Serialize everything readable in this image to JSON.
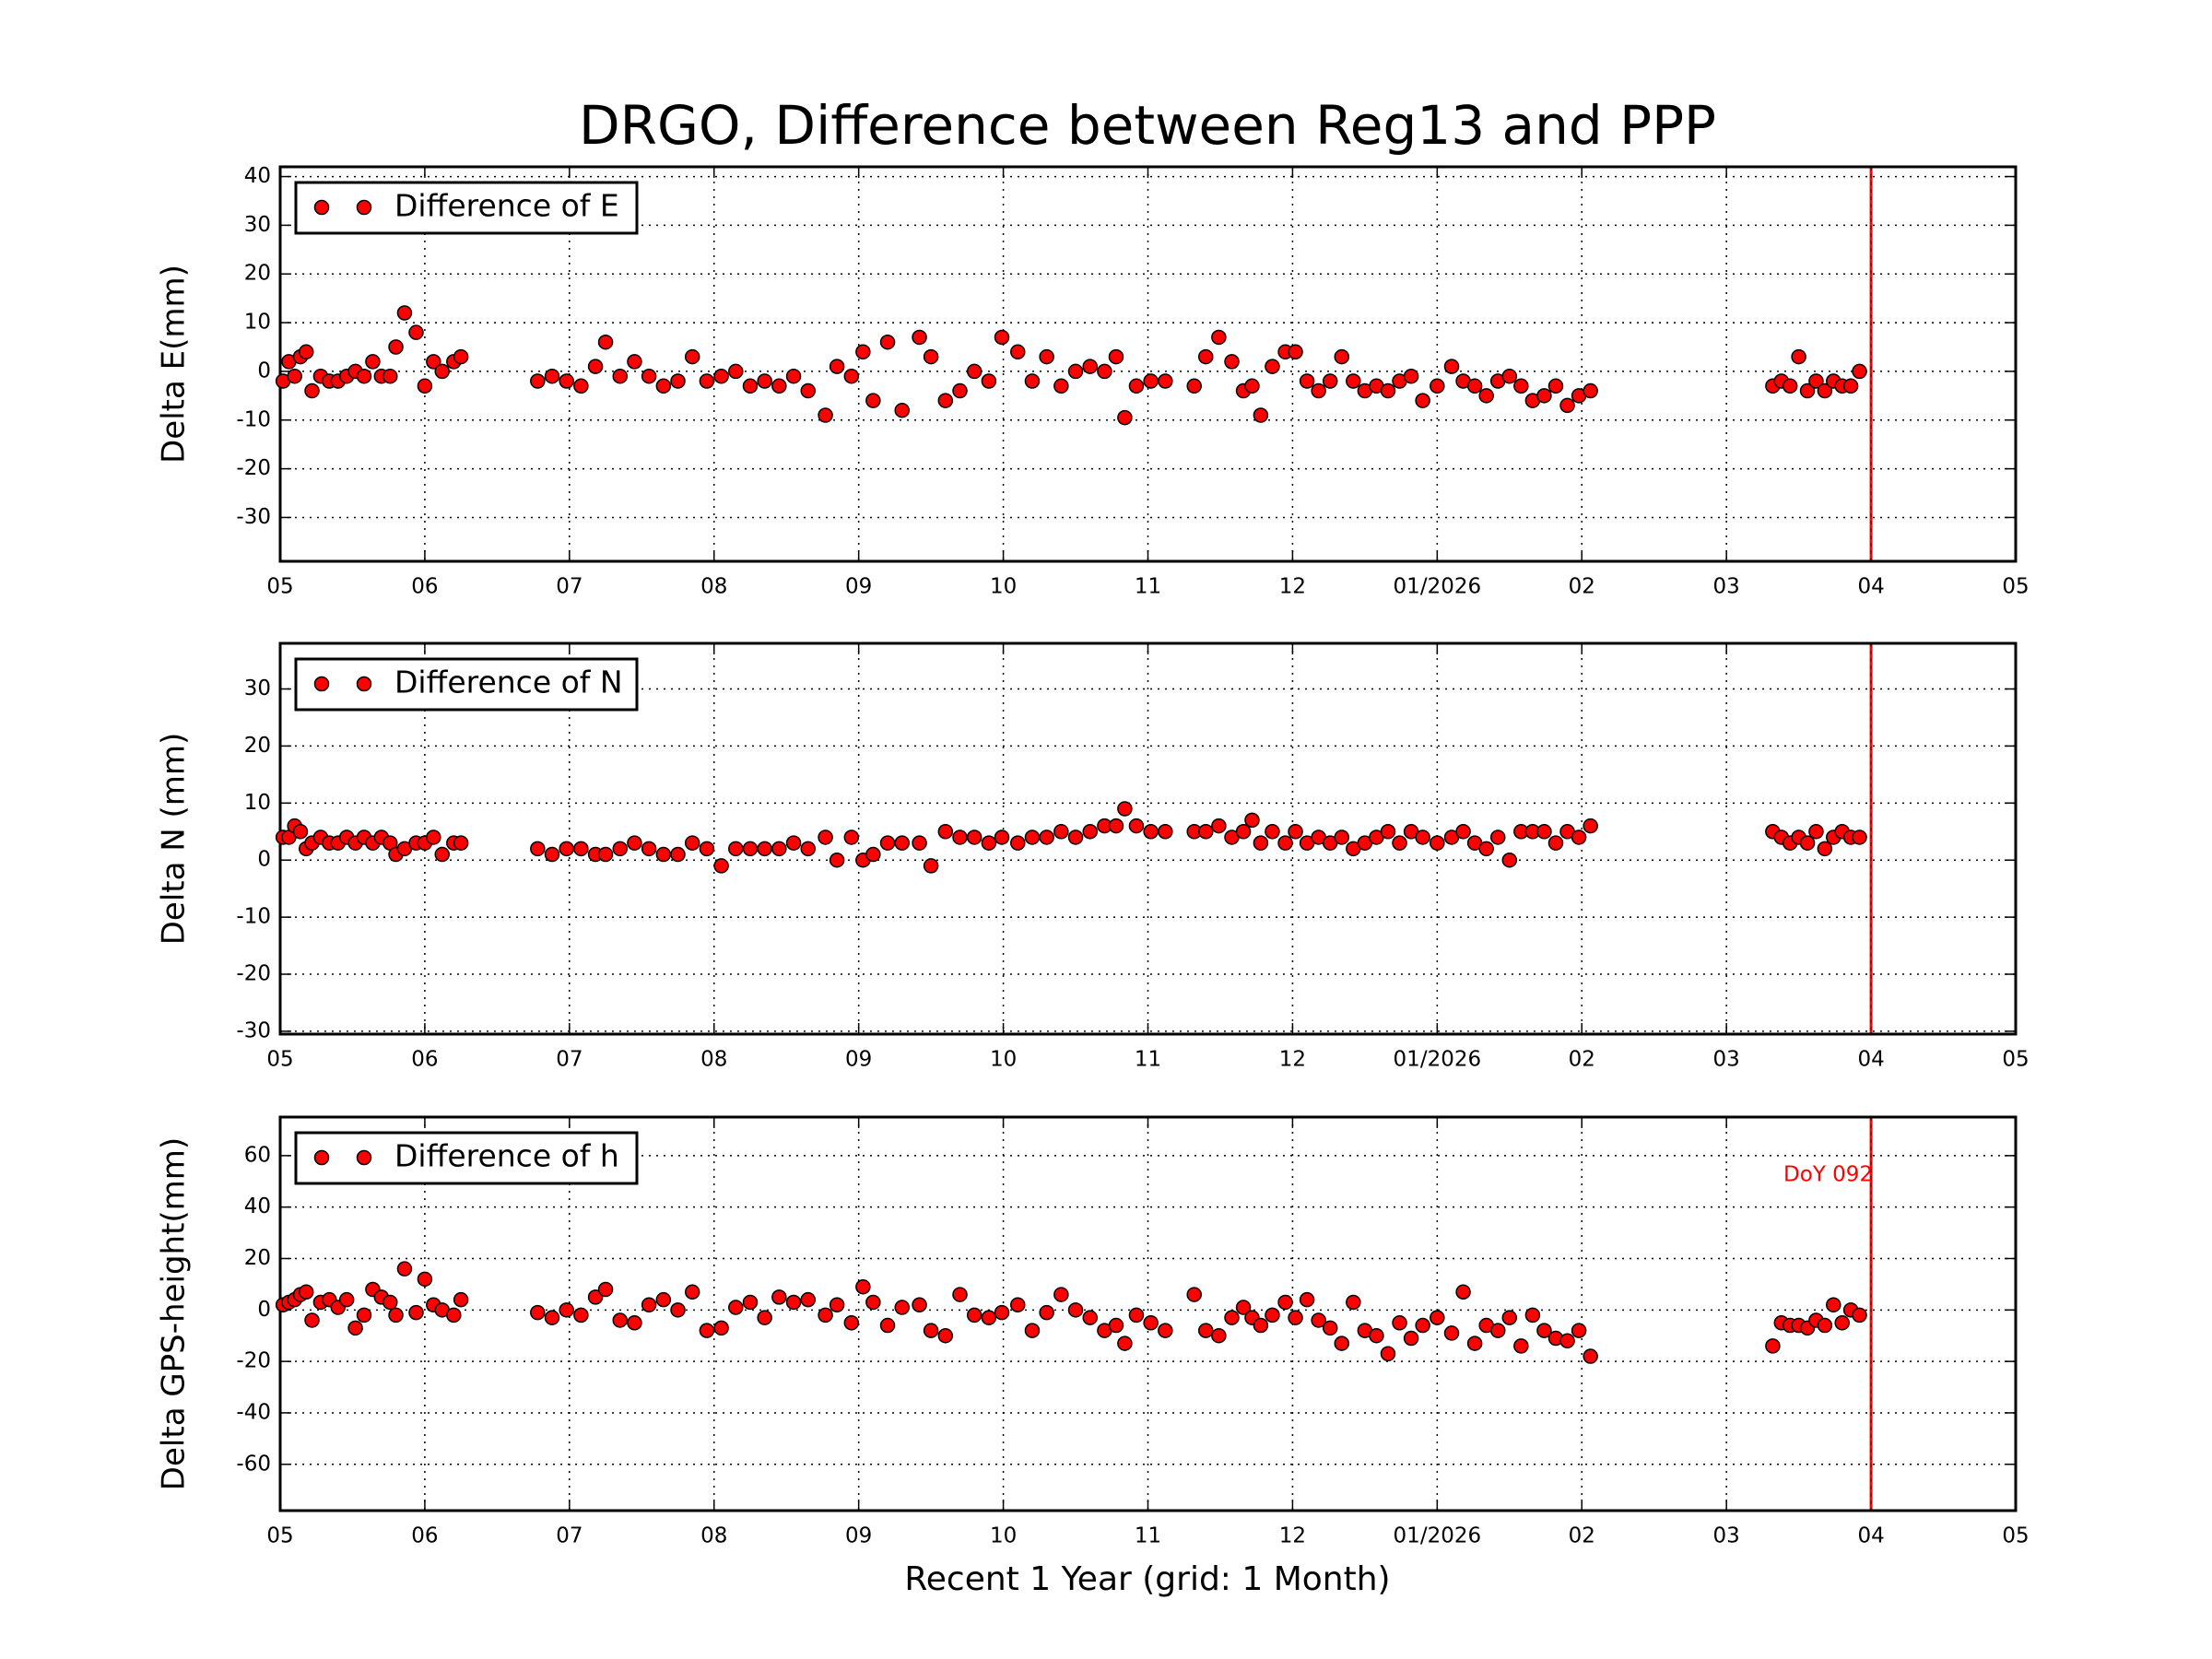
{
  "title": "DRGO, Difference between Reg13 and PPP",
  "xlabel": "Recent 1 Year (grid: 1 Month)",
  "chart_data": [
    {
      "type": "scatter",
      "ylabel": "Delta E(mm)",
      "legend": "upper left",
      "grid": true,
      "xlim": [
        0,
        12
      ],
      "ylim": [
        -39,
        42
      ],
      "yticks": [
        -30,
        -20,
        -10,
        0,
        10,
        20,
        30,
        40
      ],
      "xticks": [
        {
          "value": 0,
          "label": "05"
        },
        {
          "value": 1,
          "label": "06"
        },
        {
          "value": 2,
          "label": "07"
        },
        {
          "value": 3,
          "label": "08"
        },
        {
          "value": 4,
          "label": "09"
        },
        {
          "value": 5,
          "label": "10"
        },
        {
          "value": 6,
          "label": "11"
        },
        {
          "value": 7,
          "label": "12"
        },
        {
          "value": 8,
          "label": "01/2026"
        },
        {
          "value": 9,
          "label": "02"
        },
        {
          "value": 10,
          "label": "03"
        },
        {
          "value": 11,
          "label": "04"
        },
        {
          "value": 12,
          "label": "05"
        }
      ],
      "vline": 11,
      "vline_color": "#ff0000",
      "series": [
        {
          "name": "Difference of E",
          "color": "#ff0000",
          "x": [
            0.02,
            0.06,
            0.1,
            0.14,
            0.18,
            0.22,
            0.28,
            0.34,
            0.4,
            0.46,
            0.52,
            0.58,
            0.64,
            0.7,
            0.76,
            0.8,
            0.86,
            0.94,
            1.0,
            1.06,
            1.12,
            1.2,
            1.25,
            1.78,
            1.88,
            1.98,
            2.08,
            2.18,
            2.25,
            2.35,
            2.45,
            2.55,
            2.65,
            2.75,
            2.85,
            2.95,
            3.05,
            3.15,
            3.25,
            3.35,
            3.45,
            3.55,
            3.65,
            3.77,
            3.85,
            3.95,
            4.03,
            4.1,
            4.2,
            4.3,
            4.42,
            4.5,
            4.6,
            4.7,
            4.8,
            4.9,
            4.99,
            5.1,
            5.2,
            5.3,
            5.4,
            5.5,
            5.6,
            5.7,
            5.78,
            5.84,
            5.92,
            6.02,
            6.12,
            6.32,
            6.4,
            6.49,
            6.58,
            6.66,
            6.72,
            6.78,
            6.86,
            6.95,
            7.02,
            7.1,
            7.18,
            7.26,
            7.34,
            7.42,
            7.5,
            7.58,
            7.66,
            7.74,
            7.82,
            7.9,
            8.0,
            8.1,
            8.18,
            8.26,
            8.34,
            8.42,
            8.5,
            8.58,
            8.66,
            8.74,
            8.82,
            8.9,
            8.98,
            9.06,
            10.32,
            10.38,
            10.44,
            10.5,
            10.56,
            10.62,
            10.68,
            10.74,
            10.8,
            10.86,
            10.92
          ],
          "values": [
            -2,
            2,
            -1,
            3,
            4,
            -4,
            -1,
            -2,
            -2,
            -1,
            0,
            -1,
            2,
            -1,
            -1,
            5,
            12,
            8,
            -3,
            2,
            0,
            2,
            3,
            -2,
            -1,
            -2,
            -3,
            1,
            6,
            -1,
            2,
            -1,
            -3,
            -2,
            3,
            -2,
            -1,
            0,
            -3,
            -2,
            -3,
            -1,
            -4,
            -9,
            1,
            -1,
            4,
            -6,
            6,
            -8,
            7,
            3,
            -6,
            -4,
            0,
            -2,
            7,
            4,
            -2,
            3,
            -3,
            0,
            1,
            0,
            3,
            -9.5,
            -3,
            -2,
            -2,
            -3,
            3,
            7,
            2,
            -4,
            -3,
            -9,
            1,
            4,
            4,
            -2,
            -4,
            -2,
            3,
            -2,
            -4,
            -3,
            -4,
            -2,
            -1,
            -6,
            -3,
            1,
            -2,
            -3,
            -5,
            -2,
            -1,
            -3,
            -6,
            -5,
            -3,
            -7,
            -5,
            -4,
            -3,
            -2,
            -3,
            3,
            -4,
            -2,
            -4,
            -2,
            -3,
            -3,
            0
          ]
        }
      ]
    },
    {
      "type": "scatter",
      "ylabel": "Delta N (mm)",
      "legend": "upper left",
      "grid": true,
      "xlim": [
        0,
        12
      ],
      "ylim": [
        -30.5,
        38
      ],
      "yticks": [
        -30,
        -20,
        -10,
        0,
        10,
        20,
        30
      ],
      "xticks": [
        {
          "value": 0,
          "label": "05"
        },
        {
          "value": 1,
          "label": "06"
        },
        {
          "value": 2,
          "label": "07"
        },
        {
          "value": 3,
          "label": "08"
        },
        {
          "value": 4,
          "label": "09"
        },
        {
          "value": 5,
          "label": "10"
        },
        {
          "value": 6,
          "label": "11"
        },
        {
          "value": 7,
          "label": "12"
        },
        {
          "value": 8,
          "label": "01/2026"
        },
        {
          "value": 9,
          "label": "02"
        },
        {
          "value": 10,
          "label": "03"
        },
        {
          "value": 11,
          "label": "04"
        },
        {
          "value": 12,
          "label": "05"
        }
      ],
      "vline": 11,
      "vline_color": "#ff0000",
      "series": [
        {
          "name": "Difference of N",
          "color": "#ff0000",
          "x": [
            0.02,
            0.06,
            0.1,
            0.14,
            0.18,
            0.22,
            0.28,
            0.34,
            0.4,
            0.46,
            0.52,
            0.58,
            0.64,
            0.7,
            0.76,
            0.8,
            0.86,
            0.94,
            1.0,
            1.06,
            1.12,
            1.2,
            1.25,
            1.78,
            1.88,
            1.98,
            2.08,
            2.18,
            2.25,
            2.35,
            2.45,
            2.55,
            2.65,
            2.75,
            2.85,
            2.95,
            3.05,
            3.15,
            3.25,
            3.35,
            3.45,
            3.55,
            3.65,
            3.77,
            3.85,
            3.95,
            4.03,
            4.1,
            4.2,
            4.3,
            4.42,
            4.5,
            4.6,
            4.7,
            4.8,
            4.9,
            4.99,
            5.1,
            5.2,
            5.3,
            5.4,
            5.5,
            5.6,
            5.7,
            5.78,
            5.84,
            5.92,
            6.02,
            6.12,
            6.32,
            6.4,
            6.49,
            6.58,
            6.66,
            6.72,
            6.78,
            6.86,
            6.95,
            7.02,
            7.1,
            7.18,
            7.26,
            7.34,
            7.42,
            7.5,
            7.58,
            7.66,
            7.74,
            7.82,
            7.9,
            8.0,
            8.1,
            8.18,
            8.26,
            8.34,
            8.42,
            8.5,
            8.58,
            8.66,
            8.74,
            8.82,
            8.9,
            8.98,
            9.06,
            10.32,
            10.38,
            10.44,
            10.5,
            10.56,
            10.62,
            10.68,
            10.74,
            10.8,
            10.86,
            10.92
          ],
          "values": [
            4,
            4,
            6,
            5,
            2,
            3,
            4,
            3,
            3,
            4,
            3,
            4,
            3,
            4,
            3,
            1,
            2,
            3,
            3,
            4,
            1,
            3,
            3,
            2,
            1,
            2,
            2,
            1,
            1,
            2,
            3,
            2,
            1,
            1,
            3,
            2,
            -1,
            2,
            2,
            2,
            2,
            3,
            2,
            4,
            0,
            4,
            0,
            1,
            3,
            3,
            3,
            -1,
            5,
            4,
            4,
            3,
            4,
            3,
            4,
            4,
            5,
            4,
            5,
            6,
            6,
            9,
            6,
            5,
            5,
            5,
            5,
            6,
            4,
            5,
            7,
            3,
            5,
            3,
            5,
            3,
            4,
            3,
            4,
            2,
            3,
            4,
            5,
            3,
            5,
            4,
            3,
            4,
            5,
            3,
            2,
            4,
            0,
            5,
            5,
            5,
            3,
            5,
            4,
            6,
            5,
            4,
            3,
            4,
            3,
            5,
            2,
            4,
            5,
            4,
            4
          ]
        }
      ]
    },
    {
      "type": "scatter",
      "ylabel": "Delta GPS-height(mm)",
      "legend": "upper left",
      "grid": true,
      "xlim": [
        0,
        12
      ],
      "ylim": [
        -78,
        75
      ],
      "yticks": [
        -60,
        -40,
        -20,
        0,
        20,
        40,
        60
      ],
      "xticks": [
        {
          "value": 0,
          "label": "05"
        },
        {
          "value": 1,
          "label": "06"
        },
        {
          "value": 2,
          "label": "07"
        },
        {
          "value": 3,
          "label": "08"
        },
        {
          "value": 4,
          "label": "09"
        },
        {
          "value": 5,
          "label": "10"
        },
        {
          "value": 6,
          "label": "11"
        },
        {
          "value": 7,
          "label": "12"
        },
        {
          "value": 8,
          "label": "01/2026"
        },
        {
          "value": 9,
          "label": "02"
        },
        {
          "value": 10,
          "label": "03"
        },
        {
          "value": 11,
          "label": "04"
        },
        {
          "value": 12,
          "label": "05"
        }
      ],
      "vline": 11,
      "vline_color": "#ff0000",
      "annotation": "DoY 092",
      "series": [
        {
          "name": "Difference of h",
          "color": "#ff0000",
          "x": [
            0.02,
            0.06,
            0.1,
            0.14,
            0.18,
            0.22,
            0.28,
            0.34,
            0.4,
            0.46,
            0.52,
            0.58,
            0.64,
            0.7,
            0.76,
            0.8,
            0.86,
            0.94,
            1.0,
            1.06,
            1.12,
            1.2,
            1.25,
            1.78,
            1.88,
            1.98,
            2.08,
            2.18,
            2.25,
            2.35,
            2.45,
            2.55,
            2.65,
            2.75,
            2.85,
            2.95,
            3.05,
            3.15,
            3.25,
            3.35,
            3.45,
            3.55,
            3.65,
            3.77,
            3.85,
            3.95,
            4.03,
            4.1,
            4.2,
            4.3,
            4.42,
            4.5,
            4.6,
            4.7,
            4.8,
            4.9,
            4.99,
            5.1,
            5.2,
            5.3,
            5.4,
            5.5,
            5.6,
            5.7,
            5.78,
            5.84,
            5.92,
            6.02,
            6.12,
            6.32,
            6.4,
            6.49,
            6.58,
            6.66,
            6.72,
            6.78,
            6.86,
            6.95,
            7.02,
            7.1,
            7.18,
            7.26,
            7.34,
            7.42,
            7.5,
            7.58,
            7.66,
            7.74,
            7.82,
            7.9,
            8.0,
            8.1,
            8.18,
            8.26,
            8.34,
            8.42,
            8.5,
            8.58,
            8.66,
            8.74,
            8.82,
            8.9,
            8.98,
            9.06,
            10.32,
            10.38,
            10.44,
            10.5,
            10.56,
            10.62,
            10.68,
            10.74,
            10.8,
            10.86,
            10.92
          ],
          "values": [
            2,
            3,
            4,
            6,
            7,
            -4,
            3,
            4,
            1,
            4,
            -7,
            -2,
            8,
            5,
            3,
            -2,
            16,
            -1,
            12,
            2,
            0,
            -2,
            4,
            -1,
            -3,
            0,
            -2,
            5,
            8,
            -4,
            -5,
            2,
            4,
            0,
            7,
            -8,
            -7,
            1,
            3,
            -3,
            5,
            3,
            4,
            -2,
            2,
            -5,
            9,
            3,
            -6,
            1,
            2,
            -8,
            -10,
            6,
            -2,
            -3,
            -1,
            2,
            -8,
            -1,
            6,
            0,
            -3,
            -8,
            -6,
            -13,
            -2,
            -5,
            -8,
            6,
            -8,
            -10,
            -3,
            1,
            -3,
            -6,
            -2,
            3,
            -3,
            4,
            -4,
            -7,
            -13,
            3,
            -8,
            -10,
            -17,
            -5,
            -11,
            -6,
            -3,
            -9,
            7,
            -13,
            -6,
            -8,
            -3,
            -14,
            -2,
            -8,
            -11,
            -12,
            -8,
            -18,
            -14,
            -5,
            -6,
            -6,
            -7,
            -4,
            -6,
            2,
            -5,
            0,
            -2
          ]
        }
      ]
    }
  ]
}
